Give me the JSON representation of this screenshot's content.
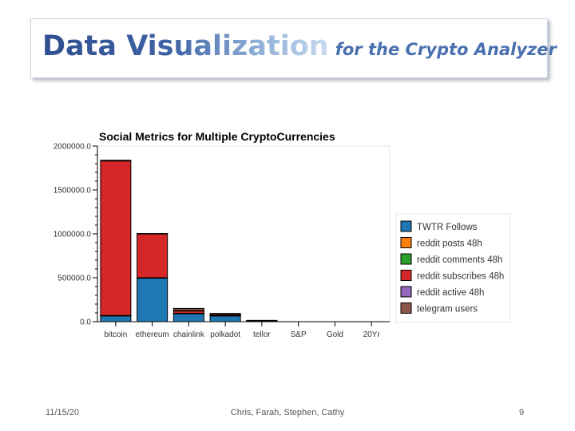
{
  "slide": {
    "title_main": "Data Visualization",
    "title_sub": "for the Crypto Analyzer",
    "footer_date": "11/15/20",
    "footer_authors": "Chris, Farah, Stephen, Cathy",
    "footer_page": "9"
  },
  "chart_data": {
    "type": "bar",
    "stacked": true,
    "title": "Social Metrics for Multiple CryptoCurrencies",
    "categories": [
      "bitcoin",
      "ethereum",
      "chainlink",
      "polkadot",
      "tellor",
      "S&P",
      "Gold",
      "20Yr"
    ],
    "ylim": [
      0,
      2000000
    ],
    "yticks": [
      "0.0",
      "500000.0",
      "1000000.0",
      "1500000.0",
      "2000000.0"
    ],
    "ytick_values": [
      0,
      500000,
      1000000,
      1500000,
      2000000
    ],
    "legend_position": "right",
    "series": [
      {
        "name": "TWTR Follows",
        "color": "#1f77b4",
        "values": [
          70000,
          500000,
          95000,
          70000,
          10000,
          0,
          0,
          0
        ]
      },
      {
        "name": "reddit posts 48h",
        "color": "#ff7f0e",
        "values": [
          20,
          30,
          5,
          5,
          1,
          0,
          0,
          0
        ]
      },
      {
        "name": "reddit comments 48h",
        "color": "#2ca02c",
        "values": [
          500,
          800,
          50,
          40,
          5,
          0,
          0,
          0
        ]
      },
      {
        "name": "reddit subscribes 48h",
        "color": "#d62728",
        "values": [
          1760000,
          500000,
          30000,
          18000,
          3000,
          0,
          0,
          0
        ]
      },
      {
        "name": "reddit active 48h",
        "color": "#9467bd",
        "values": [
          8000,
          3000,
          1000,
          500,
          50,
          0,
          0,
          0
        ]
      },
      {
        "name": "telegram users",
        "color": "#8c564b",
        "values": [
          0,
          0,
          25000,
          5000,
          2000,
          0,
          0,
          0
        ]
      }
    ]
  }
}
